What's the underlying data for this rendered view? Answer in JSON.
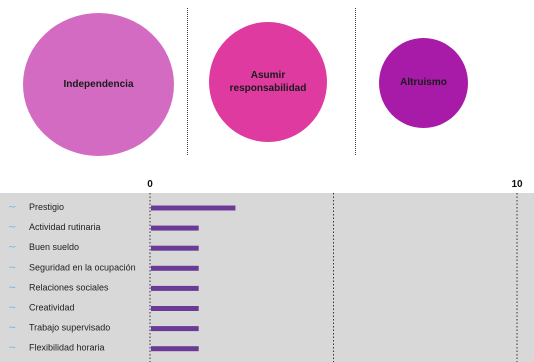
{
  "colors": {
    "bubble_1": "#d46bc3",
    "bubble_2": "#de3aa0",
    "bubble_3": "#a81aa8",
    "bar": "#6b3a96",
    "panel": "#d8d8d8",
    "row_icon": "#6fb7d8"
  },
  "bubbles": [
    {
      "label": "Independencia",
      "size_rank": 1
    },
    {
      "label": "Asumir\nresponsabilidad",
      "size_rank": 2
    },
    {
      "label": "Altruismo",
      "size_rank": 3
    }
  ],
  "chart_data": {
    "type": "bar",
    "orientation": "horizontal",
    "categories": [
      "Prestigio",
      "Actividad rutinaria",
      "Buen sueldo",
      "Seguridad en la ocupación",
      "Relaciones sociales",
      "Creatividad",
      "Trabajo supervisado",
      "Flexibilidad horaria"
    ],
    "values": [
      2.3,
      1.3,
      1.3,
      1.3,
      1.3,
      1.3,
      1.3,
      1.3
    ],
    "xlim": [
      0,
      10
    ],
    "x_ticks": [
      "0",
      "10"
    ],
    "gridlines_at": [
      0,
      5,
      10
    ],
    "row_icon": "tilde-icon"
  }
}
